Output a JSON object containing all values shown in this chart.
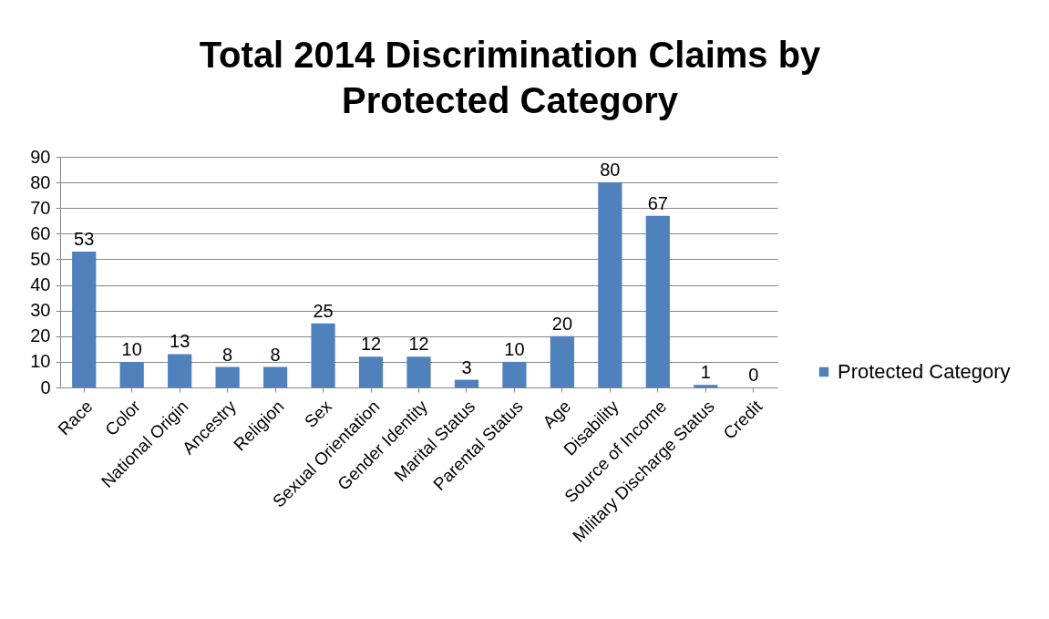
{
  "chart_data": {
    "type": "bar",
    "title": "Total 2014 Discrimination Claims by Protected Category",
    "categories": [
      "Race",
      "Color",
      "National Origin",
      "Ancestry",
      "Religion",
      "Sex",
      "Sexual Orientation",
      "Gender Identity",
      "Marital Status",
      "Parental Status",
      "Age",
      "Disability",
      "Source of Income",
      "Military Discharge Status",
      "Credit"
    ],
    "series": [
      {
        "name": "Protected Category",
        "color": "#4f81bd",
        "values": [
          53,
          10,
          13,
          8,
          8,
          25,
          12,
          12,
          3,
          10,
          20,
          80,
          67,
          1,
          0
        ]
      }
    ],
    "ylim": [
      0,
      90
    ],
    "yticks": [
      0,
      10,
      20,
      30,
      40,
      50,
      60,
      70,
      80,
      90
    ],
    "grid": "y",
    "legend": "right",
    "data_labels": true
  }
}
